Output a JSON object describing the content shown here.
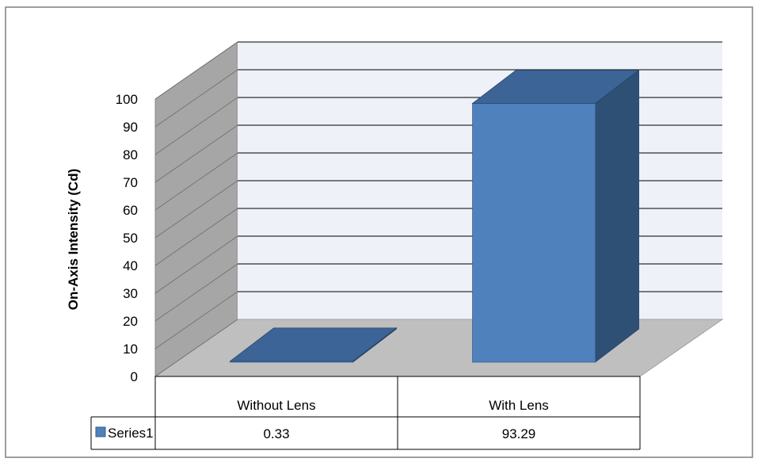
{
  "chart_data": {
    "type": "bar",
    "title": "",
    "xlabel": "",
    "ylabel": "On-Axis Intensity (Cd)",
    "ylim": [
      0,
      100
    ],
    "yticks": [
      0,
      10,
      20,
      30,
      40,
      50,
      60,
      70,
      80,
      90,
      100
    ],
    "grid": true,
    "three_d": true,
    "data_table": true,
    "categories": [
      "Without Lens",
      "With Lens"
    ],
    "series": [
      {
        "name": "Series1",
        "values": [
          0.33,
          93.29
        ],
        "value_labels": [
          "0.33",
          "93.29"
        ]
      }
    ],
    "colors": {
      "bar_front": "#4f81bd",
      "bar_top": "#3c6496",
      "bar_side": "#2f5075",
      "wall": "#eef1f8",
      "side_wall": "#a6a6a6",
      "floor": "#bfbfbf",
      "grid": "#000000",
      "border": "#7f7f7f"
    }
  }
}
